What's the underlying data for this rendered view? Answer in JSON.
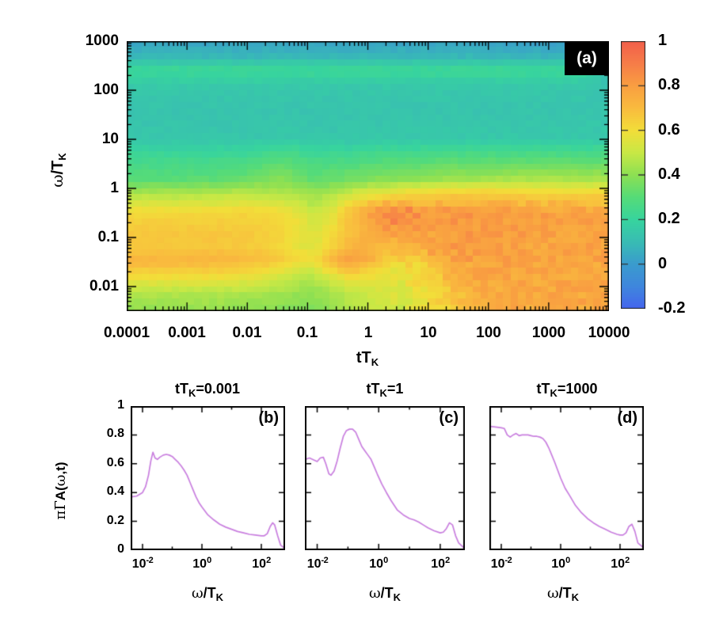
{
  "figure": {
    "panel_a_label": "(a)",
    "panel_b_label": "(b)",
    "panel_c_label": "(c)",
    "panel_d_label": "(d)"
  },
  "labels": {
    "t_main": "tT",
    "k_sub": "K",
    "omega": "ω",
    "slash_t": "/T",
    "pi_gamma": "πΓ",
    "a_open": "A(",
    "t_close": ",t)"
  },
  "chart_data": [
    {
      "type": "heatmap",
      "panel": "(a)",
      "xlabel": "tTK",
      "ylabel": "ω/TK",
      "x_log_range": [
        -4,
        4
      ],
      "y_log_range": [
        -2.5,
        3
      ],
      "x_ticks": [
        {
          "v": -4,
          "label": "0.0001"
        },
        {
          "v": -3,
          "label": "0.001"
        },
        {
          "v": -2,
          "label": "0.01"
        },
        {
          "v": -1,
          "label": "0.1"
        },
        {
          "v": 0,
          "label": "1"
        },
        {
          "v": 1,
          "label": "10"
        },
        {
          "v": 2,
          "label": "100"
        },
        {
          "v": 3,
          "label": "1000"
        },
        {
          "v": 4,
          "label": "10000"
        }
      ],
      "y_ticks": [
        {
          "v": 3,
          "label": "1000"
        },
        {
          "v": 2,
          "label": "100"
        },
        {
          "v": 1,
          "label": "10"
        },
        {
          "v": 0,
          "label": "1"
        },
        {
          "v": -1,
          "label": "0.1"
        },
        {
          "v": -2,
          "label": "0.01"
        }
      ],
      "colorbar": {
        "min": -0.2,
        "max": 1,
        "ticks": [
          {
            "v": 1,
            "label": "1"
          },
          {
            "v": 0.8,
            "label": "0.8"
          },
          {
            "v": 0.6,
            "label": "0.6"
          },
          {
            "v": 0.4,
            "label": "0.4"
          },
          {
            "v": 0.2,
            "label": "0.2"
          },
          {
            "v": 0,
            "label": "0"
          },
          {
            "v": -0.2,
            "label": "-0.2"
          }
        ]
      },
      "palette": {
        "values": [
          -0.2,
          -0.1,
          0,
          0.1,
          0.2,
          0.3,
          0.4,
          0.5,
          0.6,
          0.7,
          0.8,
          0.9,
          1.0
        ],
        "colors": [
          "#4565ee",
          "#3f86dd",
          "#3a9bce",
          "#38bcb4",
          "#37d49e",
          "#55db79",
          "#8ce053",
          "#c8e845",
          "#f2de39",
          "#f9bc3e",
          "#f99f41",
          "#f67d48",
          "#f2604a"
        ]
      },
      "grid": {
        "lt": [
          -4,
          -3.5,
          -3,
          -2.5,
          -2,
          -1.5,
          -1.2,
          -0.9,
          -0.6,
          -0.3,
          0,
          0.3,
          0.6,
          1,
          1.5,
          2,
          2.5,
          3,
          3.5,
          4
        ],
        "lw": [
          3,
          2.7,
          2.4,
          2.1,
          1.6,
          1.0,
          0.6,
          0.2,
          -0.1,
          -0.5,
          -0.9,
          -1.2,
          -1.45,
          -1.6,
          -1.85,
          -2.15,
          -2.5
        ],
        "values": [
          [
            0.03,
            0.03,
            0.03,
            0.03,
            0.03,
            0.03,
            0.03,
            0.03,
            0.03,
            0.03,
            0.03,
            0.03,
            0.03,
            0.03,
            0.03,
            0.02,
            0.02,
            0.01,
            0.0,
            -0.1
          ],
          [
            0.08,
            0.08,
            0.08,
            0.08,
            0.08,
            0.08,
            0.08,
            0.08,
            0.08,
            0.08,
            0.08,
            0.08,
            0.08,
            0.08,
            0.08,
            0.08,
            0.07,
            0.07,
            0.06,
            -0.05
          ],
          [
            0.23,
            0.23,
            0.23,
            0.23,
            0.23,
            0.23,
            0.23,
            0.23,
            0.23,
            0.23,
            0.23,
            0.23,
            0.23,
            0.23,
            0.23,
            0.23,
            0.23,
            0.23,
            0.22,
            0.1
          ],
          [
            0.15,
            0.15,
            0.15,
            0.15,
            0.15,
            0.15,
            0.15,
            0.15,
            0.15,
            0.15,
            0.15,
            0.15,
            0.15,
            0.15,
            0.15,
            0.15,
            0.15,
            0.15,
            0.15,
            0.12
          ],
          [
            0.13,
            0.13,
            0.13,
            0.13,
            0.13,
            0.13,
            0.13,
            0.13,
            0.13,
            0.13,
            0.13,
            0.13,
            0.13,
            0.13,
            0.13,
            0.13,
            0.13,
            0.13,
            0.13,
            0.13
          ],
          [
            0.14,
            0.14,
            0.14,
            0.14,
            0.14,
            0.15,
            0.15,
            0.14,
            0.14,
            0.14,
            0.15,
            0.15,
            0.15,
            0.15,
            0.15,
            0.15,
            0.15,
            0.15,
            0.15,
            0.15
          ],
          [
            0.24,
            0.24,
            0.24,
            0.24,
            0.25,
            0.29,
            0.28,
            0.25,
            0.26,
            0.26,
            0.27,
            0.28,
            0.28,
            0.29,
            0.3,
            0.3,
            0.3,
            0.3,
            0.3,
            0.3
          ],
          [
            0.3,
            0.3,
            0.3,
            0.31,
            0.33,
            0.39,
            0.36,
            0.31,
            0.33,
            0.35,
            0.37,
            0.38,
            0.39,
            0.4,
            0.42,
            0.43,
            0.44,
            0.44,
            0.44,
            0.44
          ],
          [
            0.45,
            0.45,
            0.45,
            0.46,
            0.48,
            0.46,
            0.44,
            0.42,
            0.45,
            0.5,
            0.54,
            0.57,
            0.6,
            0.62,
            0.64,
            0.64,
            0.63,
            0.62,
            0.62,
            0.62
          ],
          [
            0.62,
            0.62,
            0.62,
            0.62,
            0.63,
            0.62,
            0.58,
            0.5,
            0.56,
            0.68,
            0.76,
            0.83,
            0.85,
            0.82,
            0.83,
            0.81,
            0.8,
            0.8,
            0.79,
            0.79
          ],
          [
            0.67,
            0.67,
            0.67,
            0.67,
            0.66,
            0.64,
            0.6,
            0.55,
            0.6,
            0.68,
            0.74,
            0.8,
            0.78,
            0.75,
            0.82,
            0.8,
            0.8,
            0.79,
            0.79,
            0.78
          ],
          [
            0.67,
            0.67,
            0.67,
            0.67,
            0.66,
            0.63,
            0.58,
            0.54,
            0.62,
            0.72,
            0.74,
            0.7,
            0.68,
            0.74,
            0.8,
            0.8,
            0.79,
            0.78,
            0.78,
            0.78
          ],
          [
            0.72,
            0.72,
            0.72,
            0.72,
            0.71,
            0.68,
            0.62,
            0.6,
            0.72,
            0.8,
            0.76,
            0.66,
            0.64,
            0.68,
            0.76,
            0.79,
            0.78,
            0.78,
            0.78,
            0.78
          ],
          [
            0.69,
            0.69,
            0.69,
            0.68,
            0.66,
            0.62,
            0.56,
            0.54,
            0.66,
            0.74,
            0.68,
            0.62,
            0.6,
            0.64,
            0.73,
            0.78,
            0.78,
            0.77,
            0.77,
            0.77
          ],
          [
            0.58,
            0.58,
            0.58,
            0.58,
            0.56,
            0.52,
            0.48,
            0.46,
            0.52,
            0.58,
            0.58,
            0.56,
            0.58,
            0.63,
            0.72,
            0.77,
            0.77,
            0.77,
            0.77,
            0.77
          ],
          [
            0.46,
            0.46,
            0.46,
            0.46,
            0.45,
            0.44,
            0.42,
            0.41,
            0.44,
            0.49,
            0.51,
            0.53,
            0.55,
            0.6,
            0.7,
            0.76,
            0.77,
            0.77,
            0.77,
            0.77
          ],
          [
            0.41,
            0.41,
            0.41,
            0.41,
            0.4,
            0.39,
            0.38,
            0.37,
            0.41,
            0.46,
            0.49,
            0.51,
            0.53,
            0.57,
            0.67,
            0.74,
            0.76,
            0.77,
            0.77,
            0.77
          ]
        ]
      },
      "fringes": {
        "s_centers": [
          0.28,
          0.02,
          -0.24,
          -0.5
        ],
        "amplitudes": [
          0.05,
          0.06,
          0.05,
          0.04
        ],
        "sigma": 0.075,
        "lt_range": [
          -0.4,
          2.1
        ],
        "lw_range": [
          -1.95,
          -0.18
        ],
        "note": "dark-orange interference streaks along lines of constant omega*t"
      },
      "noise": {
        "amplitude": 0.013,
        "extra_zone": {
          "lt_min": 0.4,
          "lw_max": -0.3,
          "amplitude": 0.03
        }
      }
    },
    {
      "type": "line",
      "panel": "(b)",
      "title_pre": "tT",
      "title_sub": "K",
      "title_post": "=0.001",
      "x_log_range": [
        -2.4,
        2.8
      ],
      "ylim": [
        0,
        1
      ],
      "line_color": "#c97fdf",
      "x_ticks": [
        {
          "v": -2,
          "base": "10",
          "exp": "-2"
        },
        {
          "v": 0,
          "base": "10",
          "exp": "0"
        },
        {
          "v": 2,
          "base": "10",
          "exp": "2"
        }
      ],
      "x_minor_ticks": [
        -1,
        1
      ],
      "y_ticks": [
        {
          "v": 1,
          "label": "1"
        },
        {
          "v": 0.8,
          "label": "0.8"
        },
        {
          "v": 0.6,
          "label": "0.6"
        },
        {
          "v": 0.4,
          "label": "0.4"
        },
        {
          "v": 0.2,
          "label": "0.2"
        },
        {
          "v": 0,
          "label": "0"
        }
      ],
      "points": {
        "lx": [
          -2.4,
          -2.2,
          -2.0,
          -1.9,
          -1.8,
          -1.72,
          -1.65,
          -1.58,
          -1.5,
          -1.42,
          -1.3,
          -1.2,
          -1.1,
          -1.0,
          -0.9,
          -0.8,
          -0.7,
          -0.6,
          -0.5,
          -0.4,
          -0.3,
          -0.2,
          -0.1,
          0,
          0.2,
          0.4,
          0.6,
          0.8,
          1.0,
          1.2,
          1.4,
          1.6,
          1.8,
          2.0,
          2.1,
          2.2,
          2.3,
          2.38,
          2.45,
          2.55,
          2.65,
          2.8
        ],
        "y": [
          0.37,
          0.375,
          0.4,
          0.44,
          0.52,
          0.62,
          0.68,
          0.64,
          0.63,
          0.645,
          0.66,
          0.665,
          0.66,
          0.65,
          0.63,
          0.61,
          0.585,
          0.555,
          0.52,
          0.47,
          0.42,
          0.37,
          0.33,
          0.3,
          0.245,
          0.21,
          0.18,
          0.16,
          0.145,
          0.13,
          0.12,
          0.11,
          0.105,
          0.1,
          0.1,
          0.115,
          0.165,
          0.19,
          0.175,
          0.1,
          0.035,
          0.01
        ]
      }
    },
    {
      "type": "line",
      "panel": "(c)",
      "title_pre": "tT",
      "title_sub": "K",
      "title_post": "=1",
      "x_log_range": [
        -2.4,
        2.8
      ],
      "ylim": [
        0,
        1
      ],
      "line_color": "#c97fdf",
      "x_ticks": [
        {
          "v": -2,
          "base": "10",
          "exp": "-2"
        },
        {
          "v": 0,
          "base": "10",
          "exp": "0"
        },
        {
          "v": 2,
          "base": "10",
          "exp": "2"
        }
      ],
      "x_minor_ticks": [
        -1,
        1
      ],
      "y_ticks": [
        {
          "v": 1,
          "label": "1"
        },
        {
          "v": 0.8,
          "label": "0.8"
        },
        {
          "v": 0.6,
          "label": "0.6"
        },
        {
          "v": 0.4,
          "label": "0.4"
        },
        {
          "v": 0.2,
          "label": "0.2"
        },
        {
          "v": 0,
          "label": "0"
        }
      ],
      "points": {
        "lx": [
          -2.4,
          -2.25,
          -2.1,
          -2.0,
          -1.9,
          -1.8,
          -1.72,
          -1.62,
          -1.55,
          -1.45,
          -1.35,
          -1.25,
          -1.15,
          -1.05,
          -0.95,
          -0.85,
          -0.75,
          -0.65,
          -0.55,
          -0.45,
          -0.35,
          -0.25,
          -0.15,
          -0.05,
          0.1,
          0.25,
          0.4,
          0.6,
          0.8,
          1.0,
          1.15,
          1.3,
          1.45,
          1.6,
          1.8,
          2.0,
          2.1,
          2.2,
          2.3,
          2.4,
          2.5,
          2.6,
          2.8
        ],
        "y": [
          0.63,
          0.64,
          0.625,
          0.615,
          0.64,
          0.645,
          0.6,
          0.53,
          0.52,
          0.55,
          0.62,
          0.71,
          0.79,
          0.83,
          0.84,
          0.84,
          0.82,
          0.77,
          0.72,
          0.69,
          0.66,
          0.63,
          0.58,
          0.53,
          0.46,
          0.4,
          0.345,
          0.28,
          0.245,
          0.22,
          0.21,
          0.195,
          0.175,
          0.155,
          0.135,
          0.12,
          0.125,
          0.15,
          0.19,
          0.175,
          0.1,
          0.05,
          0.01
        ]
      }
    },
    {
      "type": "line",
      "panel": "(d)",
      "title_pre": "tT",
      "title_sub": "K",
      "title_post": "=1000",
      "x_log_range": [
        -2.4,
        2.8
      ],
      "ylim": [
        0,
        1
      ],
      "line_color": "#c97fdf",
      "x_ticks": [
        {
          "v": -2,
          "base": "10",
          "exp": "-2"
        },
        {
          "v": 0,
          "base": "10",
          "exp": "0"
        },
        {
          "v": 2,
          "base": "10",
          "exp": "2"
        }
      ],
      "x_minor_ticks": [
        -1,
        1
      ],
      "y_ticks": [
        {
          "v": 1,
          "label": "1"
        },
        {
          "v": 0.8,
          "label": "0.8"
        },
        {
          "v": 0.6,
          "label": "0.6"
        },
        {
          "v": 0.4,
          "label": "0.4"
        },
        {
          "v": 0.2,
          "label": "0.2"
        },
        {
          "v": 0,
          "label": "0"
        }
      ],
      "points": {
        "lx": [
          -2.4,
          -2.2,
          -2.0,
          -1.9,
          -1.8,
          -1.7,
          -1.6,
          -1.5,
          -1.4,
          -1.3,
          -1.2,
          -1.1,
          -1.0,
          -0.9,
          -0.8,
          -0.7,
          -0.6,
          -0.5,
          -0.4,
          -0.3,
          -0.2,
          -0.1,
          0,
          0.15,
          0.3,
          0.5,
          0.7,
          0.9,
          1.1,
          1.3,
          1.5,
          1.7,
          1.9,
          2.0,
          2.1,
          2.2,
          2.3,
          2.4,
          2.5,
          2.6,
          2.8
        ],
        "y": [
          0.86,
          0.855,
          0.85,
          0.845,
          0.8,
          0.785,
          0.8,
          0.81,
          0.795,
          0.8,
          0.8,
          0.8,
          0.795,
          0.79,
          0.79,
          0.785,
          0.775,
          0.75,
          0.71,
          0.66,
          0.61,
          0.555,
          0.5,
          0.43,
          0.38,
          0.31,
          0.26,
          0.22,
          0.19,
          0.165,
          0.145,
          0.125,
          0.11,
          0.105,
          0.105,
          0.12,
          0.165,
          0.18,
          0.13,
          0.05,
          0.015
        ]
      }
    }
  ]
}
